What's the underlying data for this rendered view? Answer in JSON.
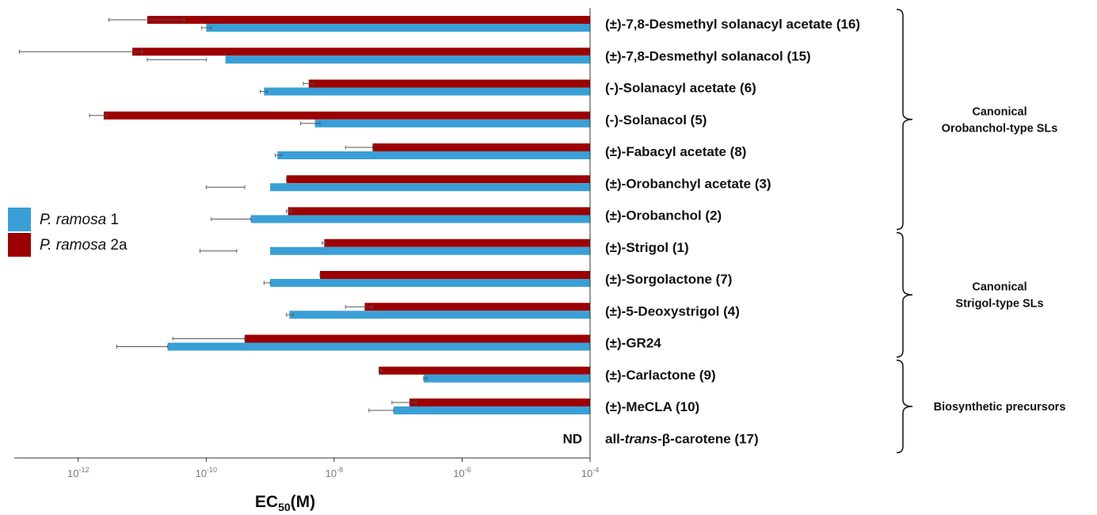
{
  "chart_data": {
    "type": "bar",
    "orientation": "horizontal",
    "x_scale": "log",
    "x_range": [
      1e-13,
      0.0001
    ],
    "xlabel": "EC",
    "xlabel_subscript": "50",
    "xlabel_suffix": "(M)",
    "x_ticks": [
      {
        "value": 1e-12,
        "base": "10",
        "exp": "-12"
      },
      {
        "value": 1e-10,
        "base": "10",
        "exp": "-10"
      },
      {
        "value": 1e-08,
        "base": "10",
        "exp": "-8"
      },
      {
        "value": 1e-06,
        "base": "10",
        "exp": "-6"
      },
      {
        "value": 0.0001,
        "base": "10",
        "exp": "-4"
      }
    ],
    "legend_position": "left",
    "series": [
      {
        "key": "pr1",
        "name_italic": "P. ramosa",
        "name_rest": " 1",
        "color": "#3a9fd6"
      },
      {
        "key": "pr2a",
        "name_italic": "P. ramosa",
        "name_rest": " 2a",
        "color": "#9c0000"
      }
    ],
    "categories": [
      {
        "label": "(±)-7,8-Desmethyl solanacyl acetate (16)",
        "pr2a": {
          "value": 1.2e-11,
          "err": [
            3e-12,
            4.5e-11
          ]
        },
        "pr1": {
          "value": 1e-10,
          "err": [
            8.5e-11,
            1.2e-10
          ]
        }
      },
      {
        "label": "(±)-7,8-Desmethyl solanacol (15)",
        "pr2a": {
          "value": 7e-12,
          "err": [
            1.2e-13,
            1e-11
          ]
        },
        "pr1": {
          "value": 2e-10,
          "err": [
            1.2e-11,
            1e-10
          ]
        }
      },
      {
        "label": "(-)-Solanacyl acetate (6)",
        "pr2a": {
          "value": 4e-09,
          "err": [
            3.3e-09,
            4.8e-09
          ]
        },
        "pr1": {
          "value": 8e-10,
          "err": [
            7e-10,
            9e-10
          ]
        }
      },
      {
        "label": "(-)-Solanacol (5)",
        "pr2a": {
          "value": 2.5e-12,
          "err": [
            1.5e-12,
            2.8e-12
          ]
        },
        "pr1": {
          "value": 5e-09,
          "err": [
            3e-09,
            6e-09
          ]
        }
      },
      {
        "label": "(±)-Fabacyl acetate (8)",
        "pr2a": {
          "value": 4e-08,
          "err": [
            1.5e-08,
            4e-08
          ]
        },
        "pr1": {
          "value": 1.3e-09,
          "err": [
            1.2e-09,
            1.5e-09
          ]
        }
      },
      {
        "label": "(±)-Orobanchyl acetate (3)",
        "pr2a": {
          "value": 1.8e-09,
          "err": [
            1.8e-09,
            1.8e-09
          ]
        },
        "pr1": {
          "value": 1e-09,
          "err": [
            1e-10,
            4e-10
          ]
        }
      },
      {
        "label": "(±)-Orobanchol (2)",
        "pr2a": {
          "value": 1.9e-09,
          "err": [
            1.8e-09,
            2.1e-09
          ]
        },
        "pr1": {
          "value": 5e-10,
          "err": [
            1.2e-10,
            5e-10
          ]
        }
      },
      {
        "label": "(±)-Strigol (1)",
        "pr2a": {
          "value": 7e-09,
          "err": [
            6.5e-09,
            7.5e-09
          ]
        },
        "pr1": {
          "value": 1e-09,
          "err": [
            8e-11,
            3e-10
          ]
        }
      },
      {
        "label": "(±)-Sorgolactone (7)",
        "pr2a": {
          "value": 6e-09,
          "err": [
            6e-09,
            6e-09
          ]
        },
        "pr1": {
          "value": 1e-09,
          "err": [
            8e-10,
            1e-09
          ]
        }
      },
      {
        "label": "(±)-5-Deoxystrigol (4)",
        "pr2a": {
          "value": 3e-08,
          "err": [
            1.5e-08,
            4e-08
          ]
        },
        "pr1": {
          "value": 2e-09,
          "err": [
            1.8e-09,
            2.3e-09
          ]
        }
      },
      {
        "label": "(±)-GR24",
        "pr2a": {
          "value": 4e-10,
          "err": [
            3e-11,
            4e-10
          ]
        },
        "pr1": {
          "value": 2.5e-11,
          "err": [
            4e-12,
            2.5e-11
          ]
        }
      },
      {
        "label": "(±)-Carlactone (9)",
        "pr2a": {
          "value": 5e-08,
          "err": [
            5e-08,
            5.5e-08
          ]
        },
        "pr1": {
          "value": 2.5e-07,
          "err": [
            2.5e-07,
            2.8e-07
          ]
        }
      },
      {
        "label": "(±)-MeCLA (10)",
        "pr2a": {
          "value": 1.5e-07,
          "err": [
            8e-08,
            1.9e-07
          ]
        },
        "pr1": {
          "value": 8.5e-08,
          "err": [
            3.5e-08,
            8.5e-08
          ]
        }
      },
      {
        "label_pre": "all-",
        "label_italic": "trans",
        "label_post": "-β-carotene (17)",
        "pr2a": null,
        "pr1": null,
        "note": "ND"
      }
    ],
    "groups": [
      {
        "first": 0,
        "last": 6,
        "lines": [
          "Canonical",
          "Orobanchol-type SLs"
        ]
      },
      {
        "first": 7,
        "last": 10,
        "lines": [
          "Canonical",
          "Strigol-type SLs"
        ]
      },
      {
        "first": 11,
        "last": 13,
        "lines": [
          "Biosynthetic precursors"
        ]
      }
    ]
  }
}
